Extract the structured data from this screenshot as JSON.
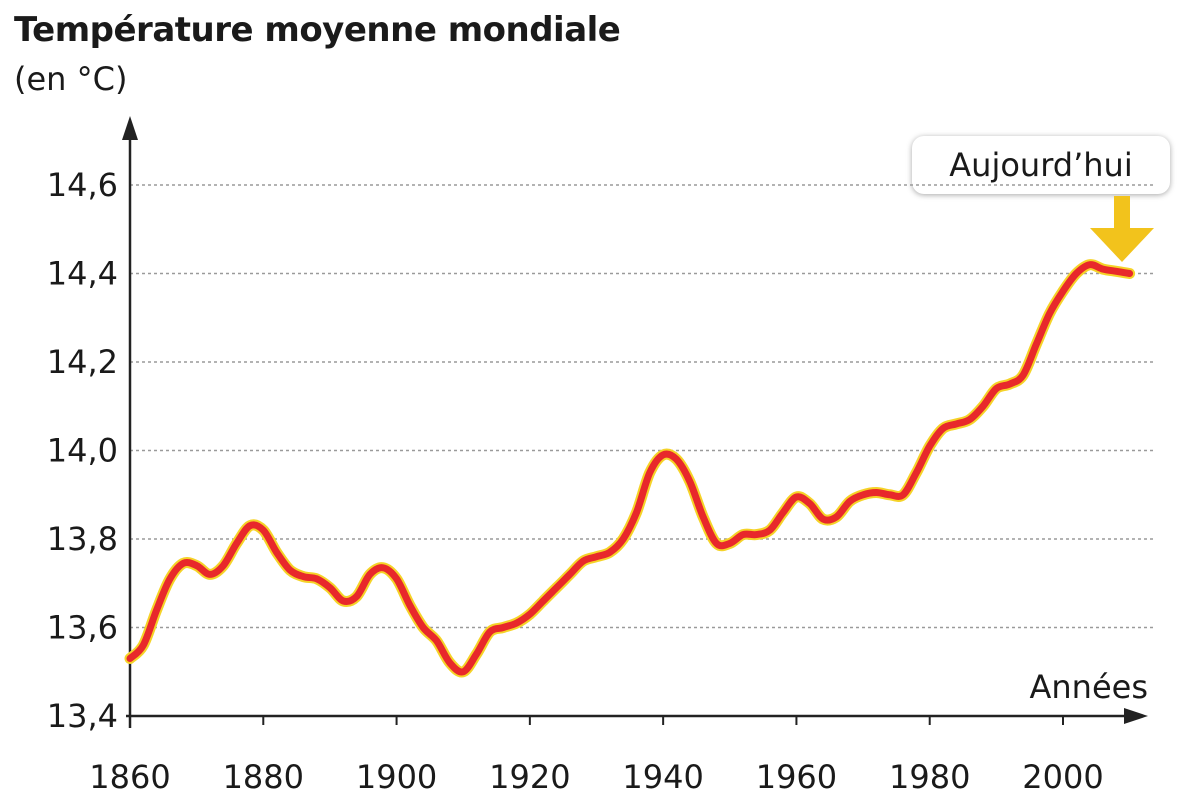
{
  "chart_data": {
    "type": "line",
    "title": "Température moyenne mondiale",
    "ylabel": "(en °C)",
    "xlabel": "Années",
    "annotation": "Aujourd’hui",
    "x_ticks": [
      "1860",
      "1880",
      "1900",
      "1920",
      "1940",
      "1960",
      "1980",
      "2000"
    ],
    "y_ticks": [
      "13,4",
      "13,6",
      "13,8",
      "14,0",
      "14,2",
      "14,4",
      "14,6"
    ],
    "xlim": [
      1860,
      2012
    ],
    "ylim": [
      13.4,
      14.7
    ],
    "grid": true,
    "colors": {
      "line": "#e8282b",
      "line_glow": "#f5d328",
      "arrow": "#f2c31c",
      "grid": "#9a9a9a"
    },
    "series": [
      {
        "x": [
          1860,
          1862,
          1864,
          1866,
          1868,
          1870,
          1872,
          1874,
          1876,
          1878,
          1880,
          1882,
          1884,
          1886,
          1888,
          1890,
          1892,
          1894,
          1896,
          1898,
          1900,
          1902,
          1904,
          1906,
          1908,
          1910,
          1912,
          1914,
          1916,
          1918,
          1920,
          1922,
          1924,
          1926,
          1928,
          1930,
          1932,
          1934,
          1936,
          1938,
          1940,
          1942,
          1944,
          1946,
          1948,
          1950,
          1952,
          1954,
          1956,
          1958,
          1960,
          1962,
          1964,
          1966,
          1968,
          1970,
          1972,
          1974,
          1976,
          1978,
          1980,
          1982,
          1984,
          1986,
          1988,
          1990,
          1992,
          1994,
          1996,
          1998,
          2000,
          2002,
          2004,
          2006,
          2008,
          2010
        ],
        "y": [
          13.53,
          13.56,
          13.64,
          13.71,
          13.745,
          13.74,
          13.72,
          13.74,
          13.79,
          13.83,
          13.82,
          13.77,
          13.73,
          13.715,
          13.71,
          13.69,
          13.66,
          13.67,
          13.72,
          13.735,
          13.71,
          13.65,
          13.6,
          13.57,
          13.52,
          13.5,
          13.54,
          13.59,
          13.6,
          13.61,
          13.63,
          13.66,
          13.69,
          13.72,
          13.75,
          13.76,
          13.77,
          13.8,
          13.86,
          13.95,
          13.99,
          13.98,
          13.93,
          13.85,
          13.79,
          13.79,
          13.81,
          13.81,
          13.82,
          13.86,
          13.895,
          13.88,
          13.845,
          13.85,
          13.885,
          13.9,
          13.905,
          13.9,
          13.9,
          13.95,
          14.01,
          14.05,
          14.06,
          14.07,
          14.1,
          14.14,
          14.15,
          14.17,
          14.24,
          14.31,
          14.36,
          14.4,
          14.42,
          14.41,
          14.405,
          14.4
        ]
      }
    ]
  }
}
